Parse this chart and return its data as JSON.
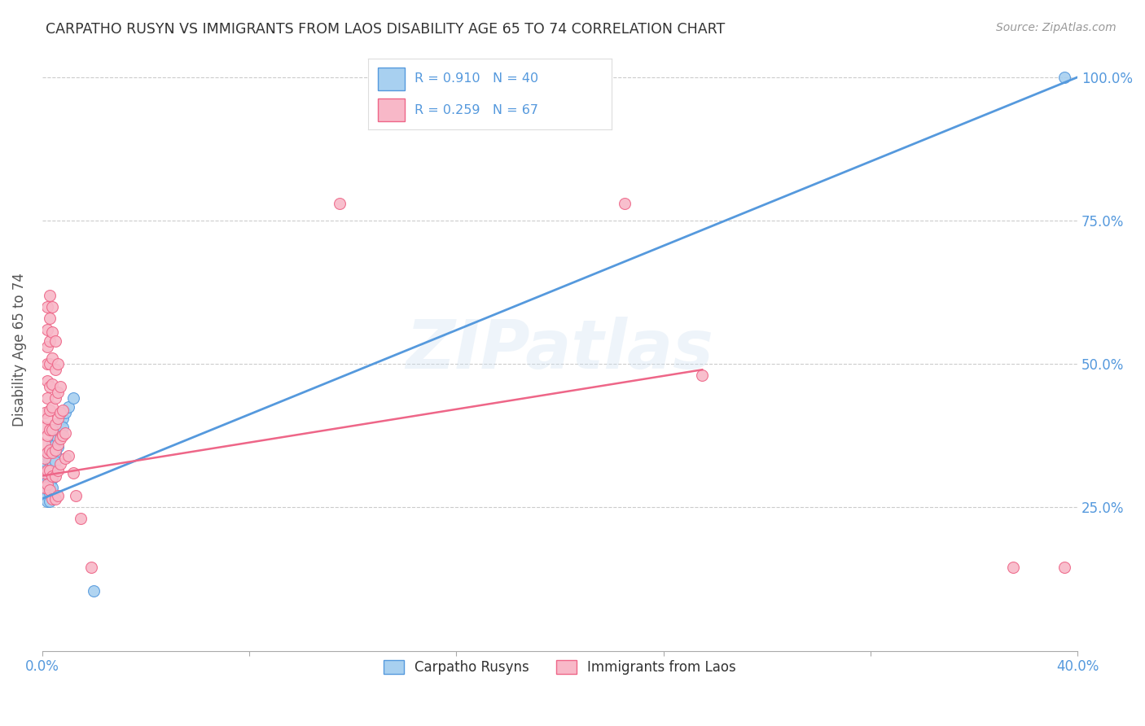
{
  "title": "CARPATHO RUSYN VS IMMIGRANTS FROM LAOS DISABILITY AGE 65 TO 74 CORRELATION CHART",
  "source": "Source: ZipAtlas.com",
  "ylabel": "Disability Age 65 to 74",
  "legend_r1": "R = 0.910",
  "legend_n1": "N = 40",
  "legend_r2": "R = 0.259",
  "legend_n2": "N = 67",
  "color_blue": "#a8d0f0",
  "color_pink": "#f8b8c8",
  "color_blue_line": "#5599dd",
  "color_pink_line": "#ee6688",
  "watermark": "ZIPatlas",
  "blue_scatter": [
    [
      0.001,
      0.315
    ],
    [
      0.001,
      0.305
    ],
    [
      0.001,
      0.295
    ],
    [
      0.001,
      0.285
    ],
    [
      0.002,
      0.34
    ],
    [
      0.002,
      0.325
    ],
    [
      0.002,
      0.31
    ],
    [
      0.002,
      0.295
    ],
    [
      0.002,
      0.28
    ],
    [
      0.002,
      0.27
    ],
    [
      0.002,
      0.26
    ],
    [
      0.003,
      0.35
    ],
    [
      0.003,
      0.335
    ],
    [
      0.003,
      0.32
    ],
    [
      0.003,
      0.305
    ],
    [
      0.003,
      0.29
    ],
    [
      0.003,
      0.275
    ],
    [
      0.003,
      0.26
    ],
    [
      0.004,
      0.36
    ],
    [
      0.004,
      0.345
    ],
    [
      0.004,
      0.33
    ],
    [
      0.004,
      0.315
    ],
    [
      0.004,
      0.3
    ],
    [
      0.004,
      0.285
    ],
    [
      0.005,
      0.375
    ],
    [
      0.005,
      0.36
    ],
    [
      0.005,
      0.345
    ],
    [
      0.005,
      0.33
    ],
    [
      0.006,
      0.385
    ],
    [
      0.006,
      0.37
    ],
    [
      0.006,
      0.355
    ],
    [
      0.007,
      0.395
    ],
    [
      0.007,
      0.38
    ],
    [
      0.008,
      0.405
    ],
    [
      0.008,
      0.39
    ],
    [
      0.009,
      0.415
    ],
    [
      0.01,
      0.425
    ],
    [
      0.012,
      0.44
    ],
    [
      0.02,
      0.105
    ],
    [
      0.395,
      1.0
    ]
  ],
  "pink_scatter": [
    [
      0.001,
      0.415
    ],
    [
      0.001,
      0.39
    ],
    [
      0.001,
      0.36
    ],
    [
      0.001,
      0.335
    ],
    [
      0.001,
      0.31
    ],
    [
      0.001,
      0.285
    ],
    [
      0.002,
      0.6
    ],
    [
      0.002,
      0.56
    ],
    [
      0.002,
      0.53
    ],
    [
      0.002,
      0.5
    ],
    [
      0.002,
      0.47
    ],
    [
      0.002,
      0.44
    ],
    [
      0.002,
      0.405
    ],
    [
      0.002,
      0.375
    ],
    [
      0.002,
      0.345
    ],
    [
      0.002,
      0.315
    ],
    [
      0.002,
      0.29
    ],
    [
      0.003,
      0.62
    ],
    [
      0.003,
      0.58
    ],
    [
      0.003,
      0.54
    ],
    [
      0.003,
      0.5
    ],
    [
      0.003,
      0.46
    ],
    [
      0.003,
      0.42
    ],
    [
      0.003,
      0.385
    ],
    [
      0.003,
      0.35
    ],
    [
      0.003,
      0.315
    ],
    [
      0.003,
      0.28
    ],
    [
      0.004,
      0.6
    ],
    [
      0.004,
      0.555
    ],
    [
      0.004,
      0.51
    ],
    [
      0.004,
      0.465
    ],
    [
      0.004,
      0.425
    ],
    [
      0.004,
      0.385
    ],
    [
      0.004,
      0.345
    ],
    [
      0.004,
      0.305
    ],
    [
      0.004,
      0.265
    ],
    [
      0.005,
      0.54
    ],
    [
      0.005,
      0.49
    ],
    [
      0.005,
      0.44
    ],
    [
      0.005,
      0.395
    ],
    [
      0.005,
      0.35
    ],
    [
      0.005,
      0.305
    ],
    [
      0.005,
      0.265
    ],
    [
      0.006,
      0.5
    ],
    [
      0.006,
      0.45
    ],
    [
      0.006,
      0.405
    ],
    [
      0.006,
      0.36
    ],
    [
      0.006,
      0.315
    ],
    [
      0.006,
      0.27
    ],
    [
      0.007,
      0.46
    ],
    [
      0.007,
      0.415
    ],
    [
      0.007,
      0.37
    ],
    [
      0.007,
      0.325
    ],
    [
      0.008,
      0.42
    ],
    [
      0.008,
      0.375
    ],
    [
      0.009,
      0.38
    ],
    [
      0.009,
      0.335
    ],
    [
      0.01,
      0.34
    ],
    [
      0.012,
      0.31
    ],
    [
      0.013,
      0.27
    ],
    [
      0.015,
      0.23
    ],
    [
      0.019,
      0.145
    ],
    [
      0.115,
      0.78
    ],
    [
      0.225,
      0.78
    ],
    [
      0.255,
      0.48
    ],
    [
      0.375,
      0.145
    ],
    [
      0.395,
      0.145
    ]
  ],
  "xlim": [
    0.0,
    0.4
  ],
  "ylim": [
    0.0,
    1.05
  ],
  "xtick_positions": [
    0.0,
    0.08,
    0.16,
    0.24,
    0.32,
    0.4
  ],
  "xtick_labels": [
    "0.0%",
    "",
    "",
    "",
    "",
    "40.0%"
  ],
  "ytick_positions": [
    0.25,
    0.5,
    0.75,
    1.0
  ],
  "ytick_labels": [
    "25.0%",
    "50.0%",
    "75.0%",
    "100.0%"
  ],
  "blue_line_x": [
    0.0,
    0.4
  ],
  "blue_line_y": [
    0.265,
    1.0
  ],
  "pink_line_x": [
    0.0,
    0.255
  ],
  "pink_line_y": [
    0.305,
    0.49
  ]
}
